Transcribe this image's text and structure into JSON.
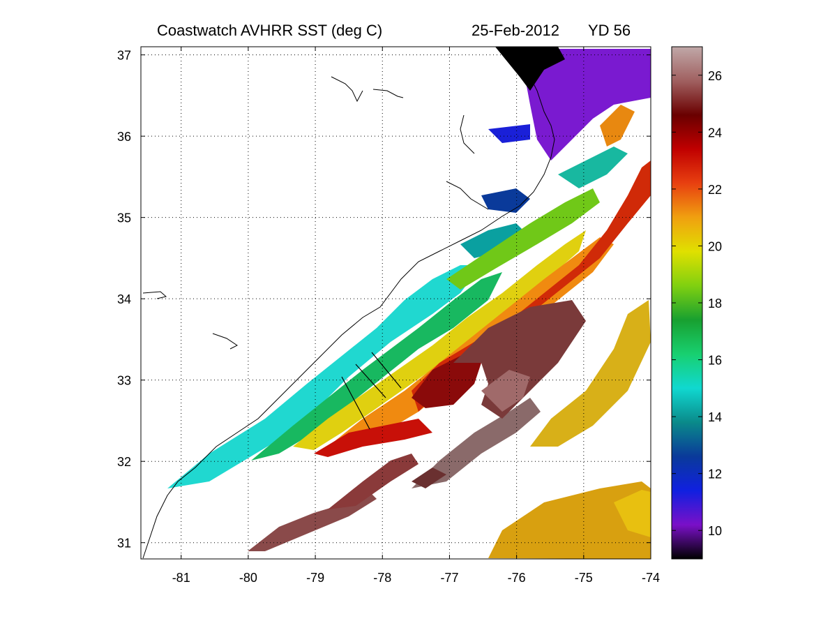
{
  "title": {
    "main": "Coastwatch   AVHRR   SST  (deg C)",
    "date": "25-Feb-2012",
    "yearday": "YD 56"
  },
  "map": {
    "lon_range": [
      -81.6,
      -74.0
    ],
    "lat_range": [
      30.8,
      37.1
    ],
    "lon_ticks": [
      "-81",
      "-80",
      "-79",
      "-78",
      "-77",
      "-76",
      "-75",
      "-74"
    ],
    "lat_ticks": [
      "37",
      "36",
      "35",
      "34",
      "33",
      "32",
      "31"
    ],
    "grid": "dotted"
  },
  "colorbar": {
    "range": [
      9,
      27
    ],
    "tick_labels": [
      "26",
      "24",
      "22",
      "20",
      "18",
      "16",
      "14",
      "12",
      "10"
    ],
    "colors": [
      "#000000",
      "#7a10c8",
      "#1020e0",
      "#0a3a9a",
      "#0a8a8a",
      "#10d8d0",
      "#18d070",
      "#18a030",
      "#80d010",
      "#e0e000",
      "#f0a010",
      "#e84010",
      "#c00000",
      "#6a0000",
      "#a06060",
      "#c0a8a8"
    ]
  }
}
